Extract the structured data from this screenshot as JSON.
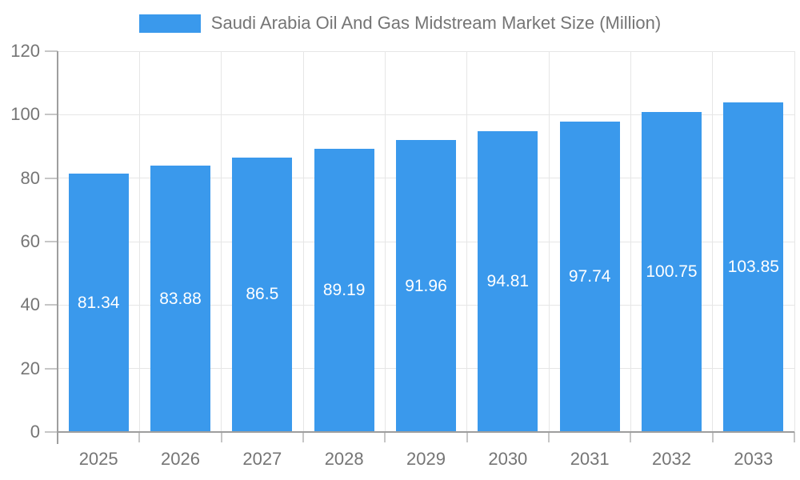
{
  "chart_data": {
    "type": "bar",
    "title": "Saudi Arabia Oil And Gas Midstream Market Size (Million)",
    "categories": [
      "2025",
      "2026",
      "2027",
      "2028",
      "2029",
      "2030",
      "2031",
      "2032",
      "2033"
    ],
    "values": [
      81.34,
      83.88,
      86.5,
      89.19,
      91.96,
      94.81,
      97.74,
      100.75,
      103.85
    ],
    "value_labels": [
      "81.34",
      "83.88",
      "86.5",
      "89.19",
      "91.96",
      "94.81",
      "97.74",
      "100.75",
      "103.85"
    ],
    "ytick_labels": [
      "0",
      "20",
      "40",
      "60",
      "80",
      "100",
      "120"
    ],
    "xlabel": "",
    "ylabel": "",
    "ylim": [
      0,
      120
    ],
    "ytick_step": 20,
    "grid": true,
    "legend_position": "top",
    "colors": {
      "bar": "#3a99ec",
      "bar_value_text": "#ffffff",
      "axis_text": "#757575",
      "legend_text": "#757575",
      "gridline": "#e6e6e6",
      "axis_line": "#9e9e9e",
      "tick": "#c6c6c6"
    }
  }
}
